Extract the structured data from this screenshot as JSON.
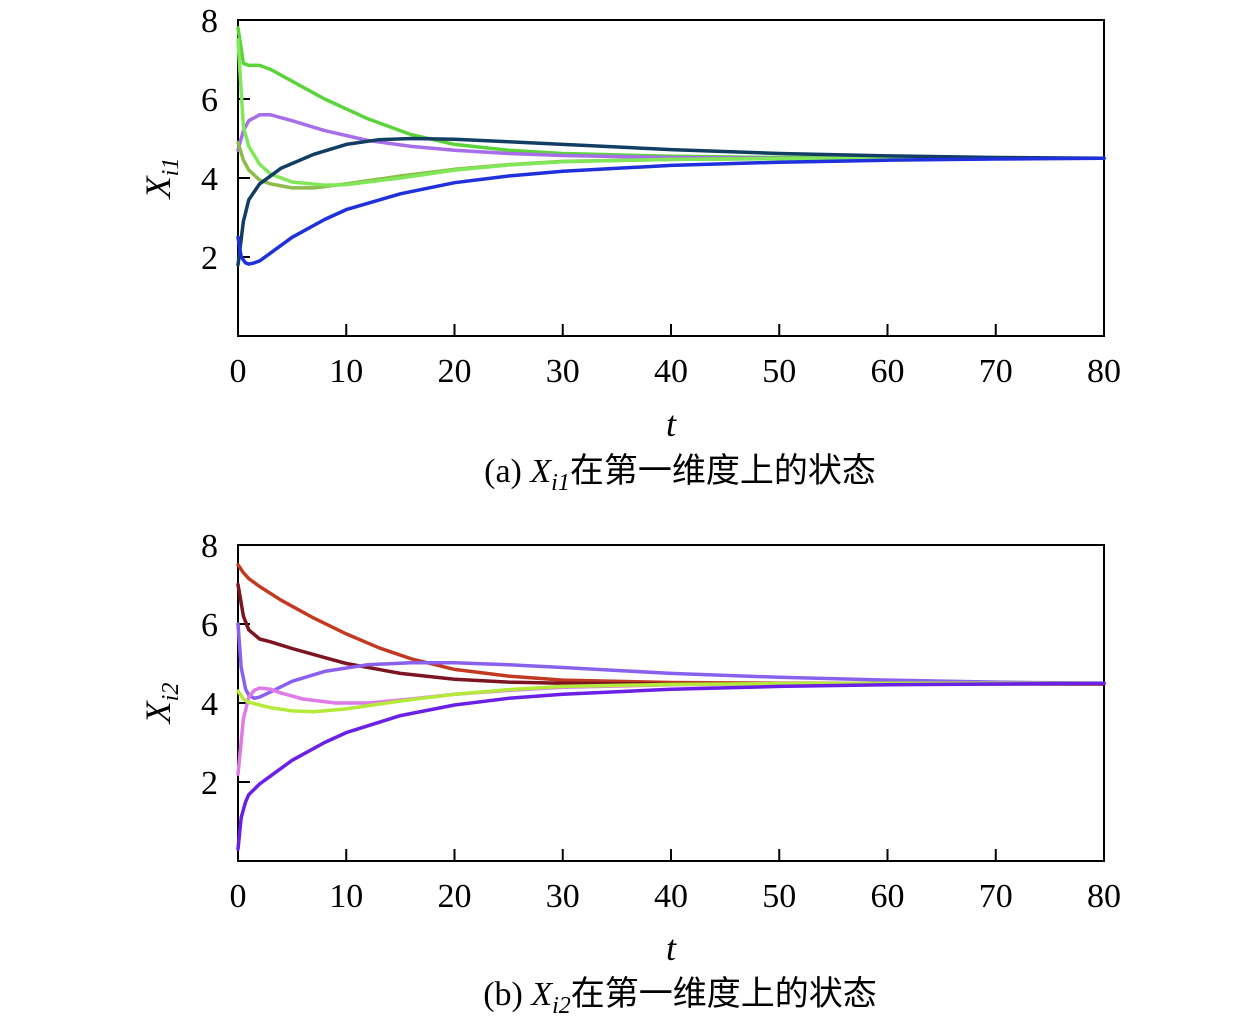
{
  "chart_data": [
    {
      "type": "line",
      "caption_prefix": "(a) ",
      "caption_var": "X",
      "caption_sub": "i1",
      "caption_text": "在第一维度上的状态",
      "ylabel_var": "X",
      "ylabel_sub": "i1",
      "xlabel": "t",
      "xlim": [
        0,
        80
      ],
      "ylim": [
        0,
        8
      ],
      "xticks": [
        "0",
        "10",
        "20",
        "30",
        "40",
        "50",
        "60",
        "70",
        "80"
      ],
      "yticks": [
        "2",
        "4",
        "6",
        "8"
      ],
      "series": [
        {
          "color": "#5ad43a",
          "x": [
            0,
            0.5,
            1,
            2,
            3,
            5,
            8,
            12,
            16,
            20,
            25,
            30,
            40,
            50,
            60,
            70,
            80
          ],
          "y": [
            7.8,
            6.9,
            6.85,
            6.85,
            6.75,
            6.45,
            6.0,
            5.5,
            5.1,
            4.85,
            4.7,
            4.62,
            4.55,
            4.52,
            4.51,
            4.5,
            4.5
          ]
        },
        {
          "color": "#a66ee8",
          "x": [
            0,
            0.5,
            1,
            2,
            3,
            5,
            8,
            12,
            16,
            20,
            25,
            30,
            40,
            50,
            60,
            70,
            80
          ],
          "y": [
            4.7,
            5.2,
            5.45,
            5.6,
            5.6,
            5.45,
            5.2,
            4.95,
            4.8,
            4.7,
            4.62,
            4.57,
            4.52,
            4.5,
            4.5,
            4.5,
            4.5
          ]
        },
        {
          "color": "#8dbc4a",
          "x": [
            0,
            0.5,
            1,
            2,
            3,
            5,
            7,
            10,
            15,
            20,
            25,
            30,
            40,
            50,
            60,
            70,
            80
          ],
          "y": [
            4.9,
            4.45,
            4.2,
            3.95,
            3.85,
            3.75,
            3.75,
            3.85,
            4.05,
            4.22,
            4.34,
            4.42,
            4.47,
            4.49,
            4.5,
            4.5,
            4.5
          ]
        },
        {
          "color": "#80e858",
          "x": [
            0,
            0.5,
            1,
            2,
            3,
            5,
            8,
            10,
            15,
            20,
            25,
            30,
            40,
            50,
            60,
            70,
            80
          ],
          "y": [
            7.5,
            5.3,
            4.8,
            4.35,
            4.1,
            3.9,
            3.82,
            3.83,
            4.0,
            4.2,
            4.33,
            4.41,
            4.47,
            4.49,
            4.5,
            4.5,
            4.5
          ]
        },
        {
          "color": "#123e64",
          "x": [
            0,
            0.5,
            1,
            2,
            4,
            7,
            10,
            13,
            16,
            20,
            25,
            30,
            40,
            50,
            60,
            70,
            80
          ],
          "y": [
            1.8,
            2.9,
            3.45,
            3.85,
            4.25,
            4.6,
            4.85,
            4.97,
            5.0,
            4.98,
            4.92,
            4.85,
            4.72,
            4.62,
            4.56,
            4.52,
            4.5
          ]
        },
        {
          "color": "#1f30dc",
          "x": [
            0,
            0.3,
            0.7,
            1,
            1.5,
            2,
            3,
            5,
            8,
            10,
            15,
            20,
            25,
            30,
            40,
            50,
            60,
            70,
            80
          ],
          "y": [
            2.5,
            2.0,
            1.85,
            1.82,
            1.85,
            1.9,
            2.1,
            2.5,
            2.95,
            3.2,
            3.6,
            3.88,
            4.05,
            4.17,
            4.32,
            4.4,
            4.45,
            4.48,
            4.5
          ]
        }
      ]
    },
    {
      "type": "line",
      "caption_prefix": "(b) ",
      "caption_var": "X",
      "caption_sub": "i2",
      "caption_text": "在第一维度上的状态",
      "ylabel_var": "X",
      "ylabel_sub": "i2",
      "xlabel": "t",
      "xlim": [
        0,
        80
      ],
      "ylim": [
        0,
        8
      ],
      "xticks": [
        "0",
        "10",
        "20",
        "30",
        "40",
        "50",
        "60",
        "70",
        "80"
      ],
      "yticks": [
        "2",
        "4",
        "6",
        "8"
      ],
      "series": [
        {
          "color": "#c23a22",
          "x": [
            0,
            0.5,
            1,
            2,
            4,
            7,
            10,
            13,
            16,
            20,
            25,
            30,
            40,
            50,
            60,
            70,
            80
          ],
          "y": [
            7.5,
            7.3,
            7.15,
            6.95,
            6.6,
            6.15,
            5.75,
            5.4,
            5.12,
            4.85,
            4.68,
            4.58,
            4.52,
            4.5,
            4.5,
            4.5,
            4.5
          ]
        },
        {
          "color": "#7d1422",
          "x": [
            0,
            0.5,
            1,
            2,
            3,
            5,
            8,
            10,
            15,
            20,
            25,
            30,
            40,
            50,
            60,
            70,
            80
          ],
          "y": [
            7.0,
            6.2,
            5.85,
            5.62,
            5.55,
            5.38,
            5.15,
            5.0,
            4.75,
            4.6,
            4.53,
            4.5,
            4.48,
            4.48,
            4.48,
            4.48,
            4.48
          ]
        },
        {
          "color": "#8a60ee",
          "x": [
            0,
            0.3,
            0.7,
            1,
            1.5,
            2,
            3,
            5,
            8,
            12,
            16,
            20,
            25,
            30,
            40,
            50,
            60,
            70,
            80
          ],
          "y": [
            6.0,
            4.9,
            4.35,
            4.2,
            4.12,
            4.15,
            4.28,
            4.55,
            4.8,
            4.97,
            5.02,
            5.02,
            4.97,
            4.9,
            4.75,
            4.65,
            4.58,
            4.53,
            4.5
          ]
        },
        {
          "color": "#e07ae6",
          "x": [
            0,
            0.5,
            1,
            1.5,
            2,
            3,
            4,
            6,
            9,
            12,
            16,
            20,
            25,
            30,
            40,
            50,
            60,
            70,
            80
          ],
          "y": [
            2.2,
            3.6,
            4.15,
            4.32,
            4.38,
            4.35,
            4.25,
            4.1,
            4.0,
            4.0,
            4.1,
            4.22,
            4.32,
            4.4,
            4.46,
            4.48,
            4.5,
            4.5,
            4.5
          ]
        },
        {
          "color": "#b4ea3a",
          "x": [
            0,
            0.5,
            1,
            2,
            3,
            5,
            7,
            10,
            15,
            20,
            25,
            30,
            40,
            50,
            60,
            70,
            80
          ],
          "y": [
            4.3,
            4.1,
            4.02,
            3.95,
            3.88,
            3.8,
            3.78,
            3.85,
            4.05,
            4.22,
            4.34,
            4.42,
            4.47,
            4.49,
            4.5,
            4.5,
            4.5
          ]
        },
        {
          "color": "#6a20e6",
          "x": [
            0,
            0.3,
            0.7,
            1,
            2,
            3,
            5,
            8,
            10,
            15,
            20,
            25,
            30,
            40,
            50,
            60,
            70,
            80
          ],
          "y": [
            0.3,
            1.1,
            1.5,
            1.68,
            1.95,
            2.15,
            2.55,
            3.0,
            3.25,
            3.68,
            3.95,
            4.12,
            4.22,
            4.35,
            4.42,
            4.46,
            4.48,
            4.5
          ]
        }
      ]
    }
  ]
}
